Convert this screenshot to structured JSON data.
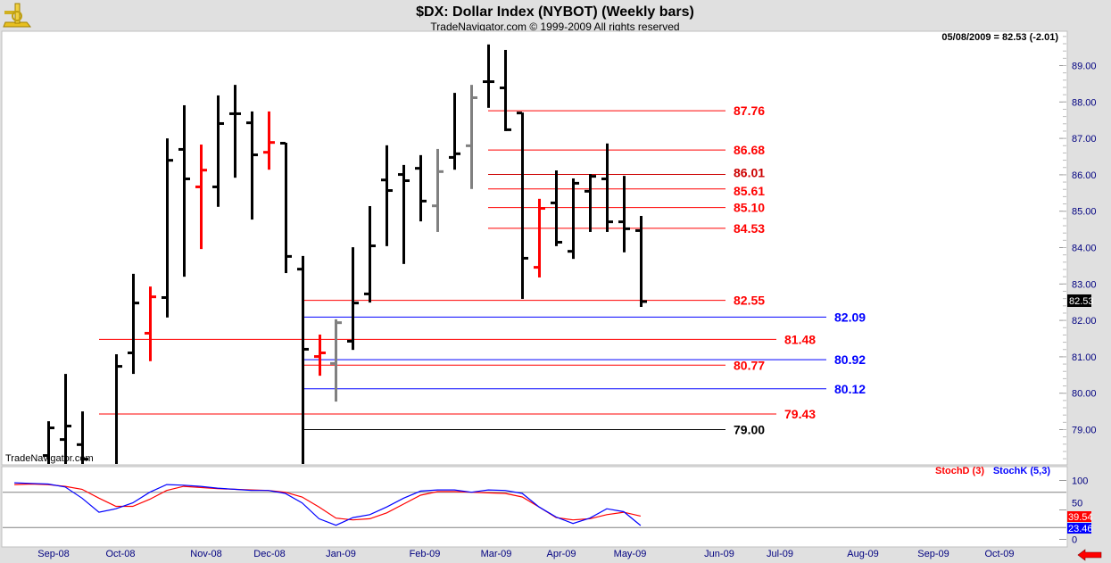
{
  "header": {
    "title": "$DX:  Dollar Index (NYBOT)  (Weekly bars)",
    "subtitle": "TradeNavigator.com © 1999-2009 All rights reserved",
    "last_quote": "05/08/2009 = 82.53 (-2.01)",
    "watermark": "TradeNavigator.com",
    "logo": "sextant-logo"
  },
  "chart_data": [
    {
      "type": "ohlc",
      "title": "$DX:  Dollar Index (NYBOT)  (Weekly bars)",
      "ylim": [
        78.06,
        89.9
      ],
      "y_ticks": [
        "89.00",
        "88.00",
        "87.00",
        "86.00",
        "85.00",
        "84.00",
        "83.00",
        "82.00",
        "81.00",
        "80.00",
        "79.00"
      ],
      "x_ticks": [
        "Sep-08",
        "Oct-08",
        "Nov-08",
        "Dec-08",
        "Jan-09",
        "Feb-09",
        "Mar-09",
        "Apr-09",
        "May-09",
        "Jun-09",
        "Jul-09",
        "Aug-09",
        "Sep-09",
        "Oct-09"
      ],
      "current_price_label": "82.53",
      "colors": {
        "up": "#000000",
        "red": "#ff0000",
        "grey": "#808080"
      },
      "bars": [
        {
          "d": "2008-09-05",
          "o": 78.3,
          "h": 79.23,
          "l": 77.5,
          "c": 79.06,
          "color": "#000000"
        },
        {
          "d": "2008-09-12",
          "o": 78.74,
          "h": 80.53,
          "l": 77.6,
          "c": 79.11,
          "color": "#000000"
        },
        {
          "d": "2008-09-19",
          "o": 78.6,
          "h": 79.5,
          "l": 77.8,
          "c": 78.2,
          "color": "#000000"
        },
        {
          "d": "2008-09-26",
          "o": 77.9,
          "h": 78.0,
          "l": 77.3,
          "c": 77.6,
          "color": "#000000"
        },
        {
          "d": "2008-10-03",
          "o": 78.0,
          "h": 81.07,
          "l": 77.8,
          "c": 80.75,
          "color": "#000000"
        },
        {
          "d": "2008-10-10",
          "o": 81.12,
          "h": 83.28,
          "l": 80.53,
          "c": 82.49,
          "color": "#000000"
        },
        {
          "d": "2008-10-17",
          "o": 81.66,
          "h": 82.93,
          "l": 80.88,
          "c": 82.66,
          "color": "#ff0000"
        },
        {
          "d": "2008-10-24",
          "o": 82.64,
          "h": 87.0,
          "l": 82.08,
          "c": 86.41,
          "color": "#000000"
        },
        {
          "d": "2008-10-31",
          "o": 86.71,
          "h": 87.91,
          "l": 83.2,
          "c": 85.9,
          "color": "#000000"
        },
        {
          "d": "2008-11-07",
          "o": 85.68,
          "h": 86.83,
          "l": 83.96,
          "c": 86.14,
          "color": "#ff0000"
        },
        {
          "d": "2008-11-14",
          "o": 85.68,
          "h": 88.18,
          "l": 85.12,
          "c": 87.42,
          "color": "#000000"
        },
        {
          "d": "2008-11-21",
          "o": 87.69,
          "h": 88.47,
          "l": 85.92,
          "c": 87.69,
          "color": "#000000"
        },
        {
          "d": "2008-11-28",
          "o": 87.44,
          "h": 87.74,
          "l": 84.77,
          "c": 86.56,
          "color": "#000000"
        },
        {
          "d": "2008-12-05",
          "o": 86.63,
          "h": 87.74,
          "l": 86.14,
          "c": 86.9,
          "color": "#ff0000"
        },
        {
          "d": "2008-12-12",
          "o": 86.88,
          "h": 86.88,
          "l": 83.3,
          "c": 83.77,
          "color": "#000000"
        },
        {
          "d": "2008-12-19",
          "o": 83.42,
          "h": 83.77,
          "l": 77.5,
          "c": 81.22,
          "color": "#000000"
        },
        {
          "d": "2008-12-26",
          "o": 81.02,
          "h": 81.61,
          "l": 80.48,
          "c": 81.12,
          "color": "#ff0000"
        },
        {
          "d": "2009-01-02",
          "o": 80.83,
          "h": 82.03,
          "l": 79.77,
          "c": 81.95,
          "color": "#808080"
        },
        {
          "d": "2009-01-09",
          "o": 81.44,
          "h": 84.01,
          "l": 81.19,
          "c": 82.49,
          "color": "#000000"
        },
        {
          "d": "2009-01-16",
          "o": 82.74,
          "h": 85.14,
          "l": 82.49,
          "c": 84.06,
          "color": "#000000"
        },
        {
          "d": "2009-01-23",
          "o": 85.87,
          "h": 86.81,
          "l": 84.04,
          "c": 85.58,
          "color": "#000000"
        },
        {
          "d": "2009-01-30",
          "o": 86.02,
          "h": 86.27,
          "l": 83.55,
          "c": 85.85,
          "color": "#000000"
        },
        {
          "d": "2009-02-06",
          "o": 86.19,
          "h": 86.54,
          "l": 84.72,
          "c": 85.29,
          "color": "#000000"
        },
        {
          "d": "2009-02-13",
          "o": 85.16,
          "h": 86.71,
          "l": 84.43,
          "c": 86.1,
          "color": "#808080"
        },
        {
          "d": "2009-02-20",
          "o": 86.49,
          "h": 88.25,
          "l": 86.14,
          "c": 86.59,
          "color": "#000000"
        },
        {
          "d": "2009-02-27",
          "o": 86.81,
          "h": 88.47,
          "l": 85.61,
          "c": 88.13,
          "color": "#808080"
        },
        {
          "d": "2009-03-06",
          "o": 88.57,
          "h": 89.58,
          "l": 87.84,
          "c": 88.57,
          "color": "#000000"
        },
        {
          "d": "2009-03-13",
          "o": 88.4,
          "h": 89.43,
          "l": 87.2,
          "c": 87.25,
          "color": "#000000"
        },
        {
          "d": "2009-03-20",
          "o": 87.71,
          "h": 87.71,
          "l": 82.59,
          "c": 83.72,
          "color": "#000000"
        },
        {
          "d": "2009-03-27",
          "o": 83.47,
          "h": 85.34,
          "l": 83.18,
          "c": 85.09,
          "color": "#ff0000"
        },
        {
          "d": "2009-04-03",
          "o": 85.24,
          "h": 86.12,
          "l": 84.04,
          "c": 84.16,
          "color": "#000000"
        },
        {
          "d": "2009-04-10",
          "o": 83.91,
          "h": 85.9,
          "l": 83.69,
          "c": 85.78,
          "color": "#000000"
        },
        {
          "d": "2009-04-17",
          "o": 85.56,
          "h": 86.02,
          "l": 84.43,
          "c": 85.97,
          "color": "#000000"
        },
        {
          "d": "2009-04-24",
          "o": 85.9,
          "h": 86.86,
          "l": 84.43,
          "c": 84.72,
          "color": "#000000"
        },
        {
          "d": "2009-05-01",
          "o": 84.72,
          "h": 85.97,
          "l": 83.87,
          "c": 84.53,
          "color": "#000000"
        },
        {
          "d": "2009-05-08",
          "o": 84.48,
          "h": 84.87,
          "l": 82.37,
          "c": 82.53,
          "color": "#000000"
        }
      ],
      "levels": [
        {
          "value": 87.76,
          "label": "87.76",
          "color": "#ff0000"
        },
        {
          "value": 86.68,
          "label": "86.68",
          "color": "#ff0000"
        },
        {
          "value": 86.01,
          "label": "86.01",
          "color": "#cc0000"
        },
        {
          "value": 85.61,
          "label": "85.61",
          "color": "#ff0000"
        },
        {
          "value": 85.1,
          "label": "85.10",
          "color": "#ff0000"
        },
        {
          "value": 84.53,
          "label": "84.53",
          "color": "#ff0000"
        },
        {
          "value": 82.55,
          "label": "82.55",
          "color": "#ff0000"
        },
        {
          "value": 82.09,
          "label": "82.09",
          "color": "#0000ff"
        },
        {
          "value": 81.48,
          "label": "81.48",
          "color": "#ff0000"
        },
        {
          "value": 80.92,
          "label": "80.92",
          "color": "#0000ff"
        },
        {
          "value": 80.77,
          "label": "80.77",
          "color": "#ff0000"
        },
        {
          "value": 80.12,
          "label": "80.12",
          "color": "#0000ff"
        },
        {
          "value": 79.43,
          "label": "79.43",
          "color": "#ff0000"
        },
        {
          "value": 79.0,
          "label": "79.00",
          "color": "#000000"
        }
      ]
    },
    {
      "type": "line",
      "ylim": [
        0,
        100
      ],
      "y_ticks": [
        "100",
        "50",
        "0"
      ],
      "guide_lines": [
        80,
        20
      ],
      "series": [
        {
          "name": "StochD (3)",
          "color": "#ff0000",
          "last_label": "39.54",
          "values": [
            93,
            94,
            93,
            90,
            85,
            70,
            56,
            56,
            68,
            83,
            90,
            88,
            86,
            85,
            84,
            83,
            80,
            72,
            55,
            36,
            33,
            35,
            45,
            60,
            75,
            81,
            81,
            80,
            79,
            78,
            72,
            55,
            37,
            33,
            35,
            42,
            46,
            39.54
          ]
        },
        {
          "name": "StochK (5,3)",
          "color": "#0000ff",
          "last_label": "23.46",
          "values": [
            96,
            95,
            94,
            89,
            70,
            46,
            52,
            62,
            80,
            93,
            92,
            90,
            87,
            85,
            83,
            83,
            78,
            62,
            35,
            24,
            37,
            42,
            55,
            70,
            82,
            84,
            84,
            80,
            84,
            83,
            78,
            55,
            38,
            27,
            36,
            52,
            47,
            23.46
          ]
        }
      ],
      "dates": [
        "2008-08-22",
        "2008-08-29",
        "2008-09-05",
        "2008-09-12",
        "2008-09-19",
        "2008-09-26",
        "2008-10-03",
        "2008-10-10",
        "2008-10-17",
        "2008-10-24",
        "2008-10-31",
        "2008-11-07",
        "2008-11-14",
        "2008-11-21",
        "2008-11-28",
        "2008-12-05",
        "2008-12-12",
        "2008-12-19",
        "2008-12-26",
        "2009-01-02",
        "2009-01-09",
        "2009-01-16",
        "2009-01-23",
        "2009-01-30",
        "2009-02-06",
        "2009-02-13",
        "2009-02-20",
        "2009-02-27",
        "2009-03-06",
        "2009-03-13",
        "2009-03-20",
        "2009-03-27",
        "2009-04-03",
        "2009-04-10",
        "2009-04-17",
        "2009-04-24",
        "2009-05-01",
        "2009-05-08"
      ]
    }
  ],
  "footer": {
    "scroll_arrow": "left-arrow-icon"
  }
}
